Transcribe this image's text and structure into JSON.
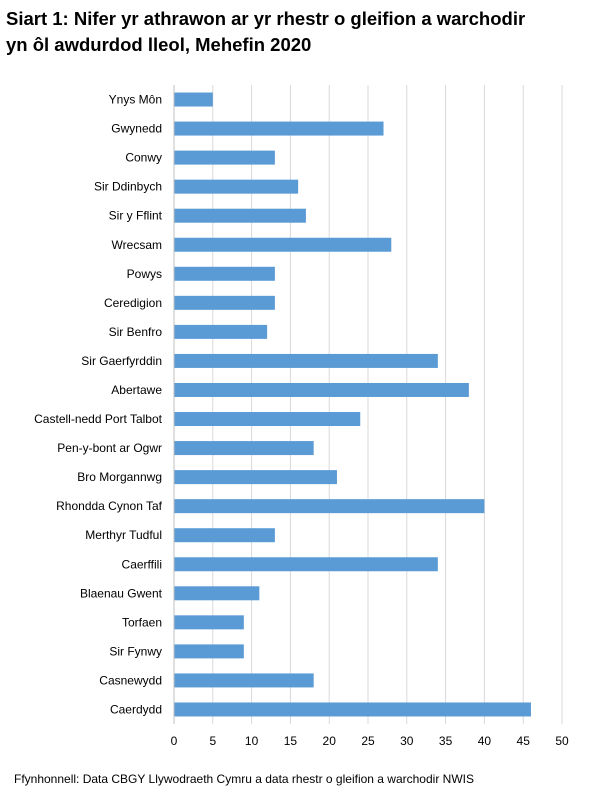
{
  "title_line1": "Siart 1: Nifer yr athrawon ar yr rhestr o gleifion a warchodir",
  "title_line2": "yn ôl awdurdod lleol, Mehefin 2020",
  "source": "Ffynhonnell: Data CBGY Llywodraeth Cymru a data rhestr o gleifion a warchodir NWIS",
  "colors": {
    "bar": "#5b9bd5",
    "grid": "#d9d9d9",
    "axis": "#bfbfbf"
  },
  "chart_data": {
    "type": "bar",
    "orientation": "horizontal",
    "categories": [
      "Ynys Môn",
      "Gwynedd",
      "Conwy",
      "Sir Ddinbych",
      "Sir y Fflint",
      "Wrecsam",
      "Powys",
      "Ceredigion",
      "Sir Benfro",
      "Sir Gaerfyrddin",
      "Abertawe",
      "Castell-nedd Port Talbot",
      "Pen-y-bont ar Ogwr",
      "Bro Morgannwg",
      "Rhondda Cynon Taf",
      "Merthyr Tudful",
      "Caerffili",
      "Blaenau Gwent",
      "Torfaen",
      "Sir Fynwy",
      "Casnewydd",
      "Caerdydd"
    ],
    "values": [
      5,
      27,
      13,
      16,
      17,
      28,
      13,
      13,
      12,
      34,
      38,
      24,
      18,
      21,
      40,
      13,
      34,
      11,
      9,
      9,
      18,
      46
    ],
    "xlim": [
      0,
      50
    ],
    "xticks": [
      0,
      5,
      10,
      15,
      20,
      25,
      30,
      35,
      40,
      45,
      50
    ],
    "grid": "vertical",
    "legend": "none"
  }
}
